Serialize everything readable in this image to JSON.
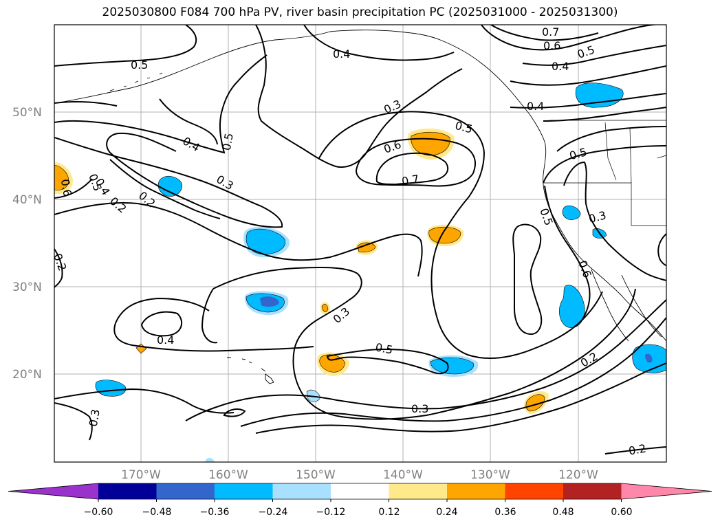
{
  "title": "2025030800 F084 700 hPa PV, river basin precipitation PC (2025031000 - 2025031300)",
  "map": {
    "lat_ticks": [
      "50°N",
      "40°N",
      "30°N",
      "20°N"
    ],
    "lon_ticks": [
      "170°W",
      "160°W",
      "150°W",
      "140°W",
      "130°W",
      "120°W"
    ],
    "gridlines": true
  },
  "contour_labels": [
    "0.7",
    "0.6",
    "0.5",
    "0.4",
    "0.5",
    "0.4",
    "0.4",
    "0.3",
    "0.5",
    "0.4",
    "0.6",
    "0.5",
    "0.6",
    "0.5",
    "0.3",
    "0.2",
    "0.7",
    "0.2",
    "0.5",
    "0.3",
    "0.6",
    "0.3",
    "0.5",
    "0.4",
    "0.3",
    "0.5",
    "0.2",
    "0.3",
    "0.2",
    "0.4",
    "0.2"
  ],
  "colorbar": {
    "ticks": [
      "−0.60",
      "−0.48",
      "−0.36",
      "−0.24",
      "−0.12",
      "0.12",
      "0.24",
      "0.36",
      "0.48",
      "0.60"
    ],
    "colors": [
      "#9933cc",
      "#000099",
      "#3366cc",
      "#00bbff",
      "#aae0ff",
      "#ffffff",
      "#ffe98a",
      "#ffa500",
      "#ff4400",
      "#b22222",
      "#ff88aa"
    ],
    "extend": "both"
  }
}
